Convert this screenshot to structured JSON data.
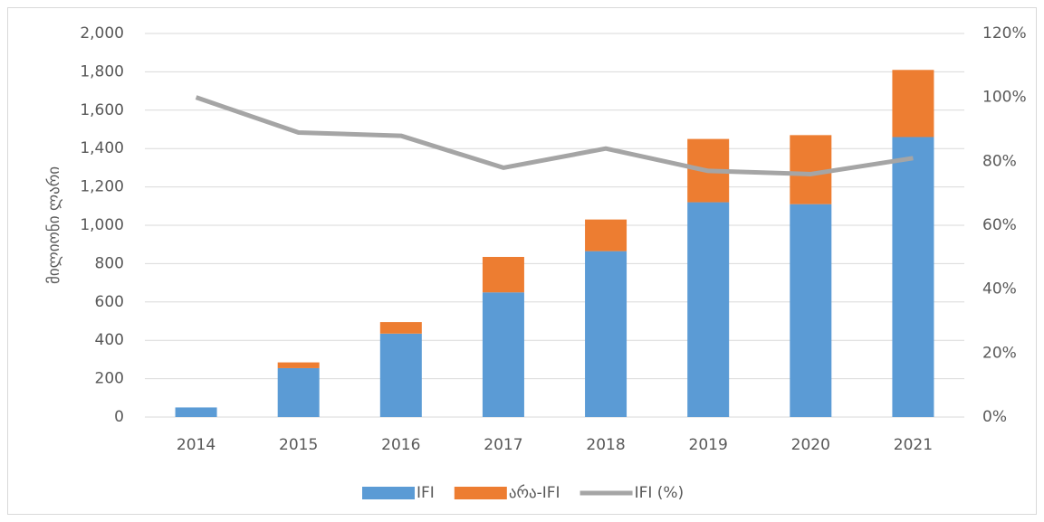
{
  "chart_data": {
    "type": "bar",
    "y_label": "მილიონი ლარი",
    "categories": [
      "2014",
      "2015",
      "2016",
      "2017",
      "2018",
      "2019",
      "2020",
      "2021"
    ],
    "series": [
      {
        "name": "IFI",
        "color": "#5b9bd5",
        "values": [
          50,
          255,
          435,
          650,
          865,
          1120,
          1110,
          1460
        ]
      },
      {
        "name": "არა-IFI",
        "color": "#ed7d31",
        "values": [
          0,
          30,
          60,
          185,
          165,
          330,
          360,
          350
        ]
      },
      {
        "name": "IFI (%)",
        "color": "#a5a5a5",
        "type": "line",
        "axis": "y2",
        "values": [
          100,
          89,
          88,
          78,
          84,
          77,
          76,
          81
        ]
      }
    ],
    "ylim": [
      0,
      2000
    ],
    "yticks": [
      0,
      200,
      400,
      600,
      800,
      {
        "value": 1000,
        "label": "1,000"
      },
      {
        "value": 1200,
        "label": "1,200"
      },
      {
        "value": 1400,
        "label": "1,400"
      },
      {
        "value": 1600,
        "label": "1,600"
      },
      {
        "value": 1800,
        "label": "1,800"
      },
      {
        "value": 2000,
        "label": "2,000"
      }
    ],
    "y2lim": [
      0,
      120
    ],
    "y2ticks": [
      {
        "value": 0,
        "label": "0%"
      },
      {
        "value": 20,
        "label": "20%"
      },
      {
        "value": 40,
        "label": "40%"
      },
      {
        "value": 60,
        "label": "60%"
      },
      {
        "value": 80,
        "label": "80%"
      },
      {
        "value": 100,
        "label": "100%"
      },
      {
        "value": 120,
        "label": "120%"
      }
    ],
    "grid": true,
    "legend": "bottom"
  }
}
